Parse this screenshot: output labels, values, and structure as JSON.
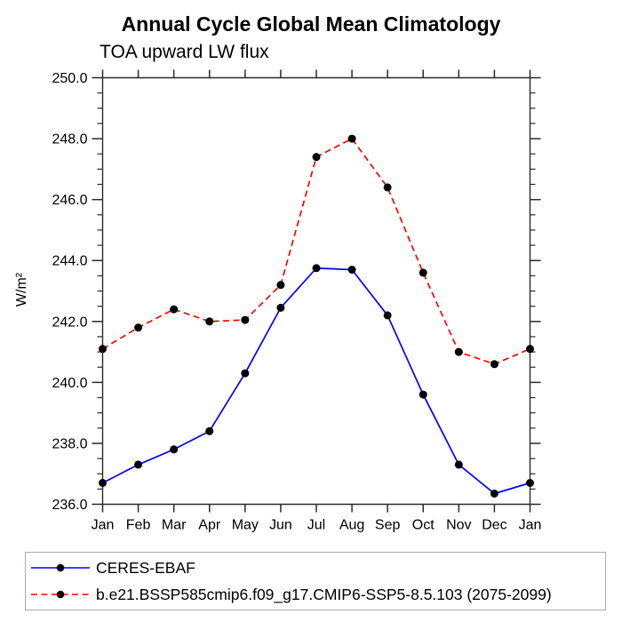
{
  "title": "Annual Cycle Global Mean Climatology",
  "subtitle": "TOA upward LW flux",
  "chart_data": {
    "type": "line",
    "title": "Annual Cycle Global Mean Climatology",
    "subtitle": "TOA upward LW flux",
    "xlabel": "",
    "ylabel": "W/m²",
    "x_categories": [
      "Jan",
      "Feb",
      "Mar",
      "Apr",
      "May",
      "Jun",
      "Jul",
      "Aug",
      "Sep",
      "Oct",
      "Nov",
      "Dec",
      "Jan"
    ],
    "ylim": [
      236.0,
      250.0
    ],
    "ytick_major_step": 2.0,
    "ytick_minor_step": 0.5,
    "ytick_labels": [
      "236.0",
      "238.0",
      "240.0",
      "242.0",
      "244.0",
      "246.0",
      "248.0",
      "250.0"
    ],
    "grid": false,
    "legend_position": "bottom-left",
    "marker": {
      "shape": "filled-circle",
      "color": "#000000",
      "radius": 4.5
    },
    "axis_color": "#2a2a2a",
    "series": [
      {
        "name": "CERES-EBAF",
        "color": "#0000ff",
        "style": "solid",
        "values": [
          236.7,
          237.3,
          237.8,
          238.4,
          240.3,
          242.45,
          243.75,
          243.7,
          242.2,
          239.6,
          237.3,
          236.35,
          236.7
        ]
      },
      {
        "name": "b.e21.BSSP585cmip6.f09_g17.CMIP6-SSP5-8.5.103 (2075-2099)",
        "color": "#ff0000",
        "style": "dashed",
        "values": [
          241.1,
          241.8,
          242.4,
          242.0,
          242.05,
          243.2,
          247.4,
          248.0,
          246.4,
          243.6,
          241.0,
          240.6,
          241.1
        ]
      }
    ]
  }
}
